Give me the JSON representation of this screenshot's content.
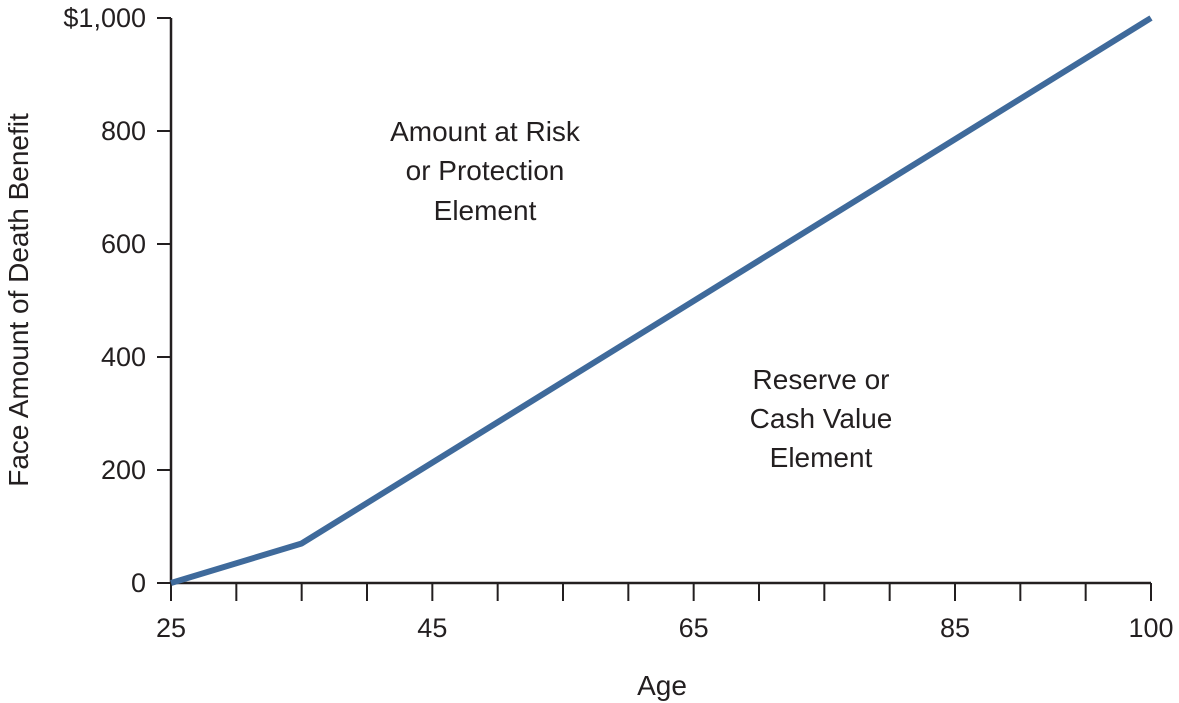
{
  "chart_data": {
    "type": "line",
    "title": "",
    "xlabel": "Age",
    "ylabel": "Face Amount of Death Benefit",
    "xlim": [
      25,
      100
    ],
    "ylim": [
      0,
      1000
    ],
    "x_ticks": [
      25,
      45,
      65,
      85,
      100
    ],
    "x_tick_labels": [
      "25",
      "45",
      "65",
      "85",
      "100"
    ],
    "x_minor_ticks": [
      30,
      35,
      40,
      50,
      55,
      60,
      70,
      75,
      80,
      90,
      95
    ],
    "y_ticks": [
      0,
      200,
      400,
      600,
      800,
      1000
    ],
    "y_tick_labels": [
      "0",
      "200",
      "400",
      "600",
      "800",
      "$1,000"
    ],
    "grid": false,
    "series": [
      {
        "color": "#3f6a9b",
        "x": [
          25,
          35,
          100
        ],
        "y": [
          0,
          70,
          1000
        ]
      }
    ],
    "annotations": {
      "upper": [
        "Amount at Risk",
        "or Protection",
        "Element"
      ],
      "lower": [
        "Reserve or",
        "Cash Value",
        "Element"
      ]
    }
  }
}
